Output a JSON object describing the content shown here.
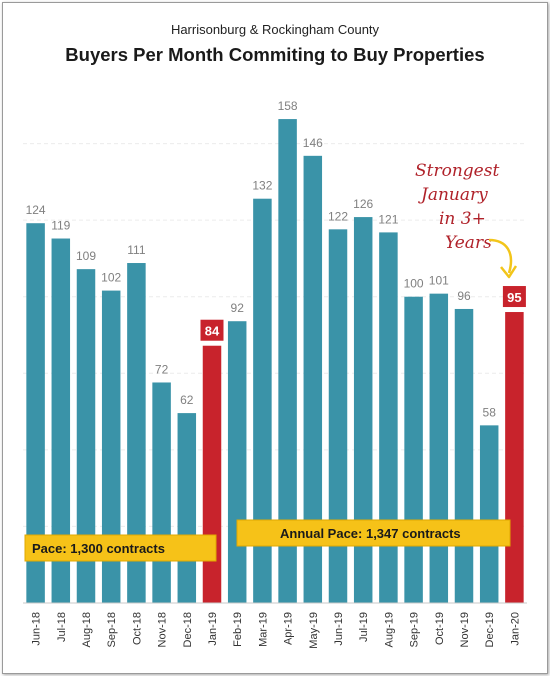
{
  "chart_data": {
    "type": "bar",
    "subtitle": "Harrisonburg & Rockingham County",
    "title": "Buyers Per Month Commiting to Buy Properties",
    "categories": [
      "Jun-18",
      "Jul-18",
      "Aug-18",
      "Sep-18",
      "Oct-18",
      "Nov-18",
      "Dec-18",
      "Jan-19",
      "Feb-19",
      "Mar-19",
      "Apr-19",
      "May-19",
      "Jun-19",
      "Jul-19",
      "Aug-19",
      "Sep-19",
      "Oct-19",
      "Nov-19",
      "Dec-19",
      "Jan-20"
    ],
    "values": [
      124,
      119,
      109,
      102,
      111,
      72,
      62,
      84,
      92,
      132,
      158,
      146,
      122,
      126,
      121,
      100,
      101,
      96,
      58,
      95
    ],
    "highlighted": [
      "Jan-19",
      "Jan-20"
    ],
    "ylim": [
      0,
      175
    ],
    "grid": "horizontal dashed",
    "colors": {
      "bar": "#3a93a8",
      "highlight": "#c8232c",
      "pace_box": "#f6c218",
      "annotation": "#b0222a",
      "arrow": "#f2c51a"
    },
    "pace_labels": [
      "Pace: 1,300 contracts",
      "Annual Pace: 1,347 contracts"
    ],
    "annotation": [
      "Strongest",
      "January",
      "in 3+",
      "Years"
    ]
  }
}
